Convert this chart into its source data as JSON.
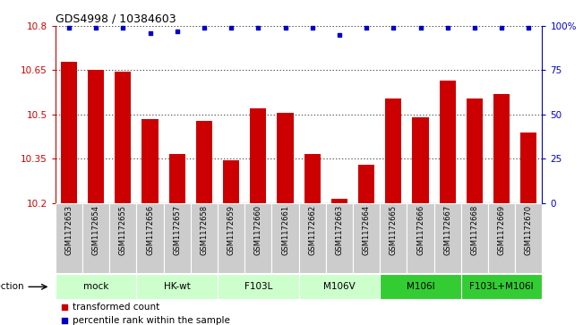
{
  "title": "GDS4998 / 10384603",
  "samples": [
    "GSM1172653",
    "GSM1172654",
    "GSM1172655",
    "GSM1172656",
    "GSM1172657",
    "GSM1172658",
    "GSM1172659",
    "GSM1172660",
    "GSM1172661",
    "GSM1172662",
    "GSM1172663",
    "GSM1172664",
    "GSM1172665",
    "GSM1172666",
    "GSM1172667",
    "GSM1172668",
    "GSM1172669",
    "GSM1172670"
  ],
  "bar_values": [
    10.68,
    10.65,
    10.645,
    10.485,
    10.365,
    10.48,
    10.345,
    10.52,
    10.505,
    10.365,
    10.215,
    10.33,
    10.555,
    10.49,
    10.615,
    10.555,
    10.57,
    10.44
  ],
  "percentile_values": [
    99,
    99,
    99,
    96,
    97,
    99,
    99,
    99,
    99,
    99,
    95,
    99,
    99,
    99,
    99,
    99,
    99,
    99
  ],
  "ylim_left": [
    10.2,
    10.8
  ],
  "ylim_right": [
    0,
    100
  ],
  "yticks_left": [
    10.2,
    10.35,
    10.5,
    10.65,
    10.8
  ],
  "yticks_right": [
    0,
    25,
    50,
    75,
    100
  ],
  "ytick_labels_right": [
    "0",
    "25",
    "50",
    "75",
    "100%"
  ],
  "bar_color": "#cc0000",
  "dot_color": "#0000cc",
  "infection_groups": [
    {
      "label": "mock",
      "start": 0,
      "end": 2,
      "color": "#ccffcc"
    },
    {
      "label": "HK-wt",
      "start": 3,
      "end": 5,
      "color": "#ccffcc"
    },
    {
      "label": "F103L",
      "start": 6,
      "end": 8,
      "color": "#ccffcc"
    },
    {
      "label": "M106V",
      "start": 9,
      "end": 11,
      "color": "#ccffcc"
    },
    {
      "label": "M106I",
      "start": 12,
      "end": 14,
      "color": "#33cc33"
    },
    {
      "label": "F103L+M106I",
      "start": 15,
      "end": 17,
      "color": "#33cc33"
    }
  ],
  "infection_label": "infection",
  "legend_bar_label": "transformed count",
  "legend_dot_label": "percentile rank within the sample",
  "left_axis_color": "#cc0000",
  "right_axis_color": "#0000cc",
  "sample_box_color": "#cccccc",
  "sample_box_edge": "#ffffff"
}
